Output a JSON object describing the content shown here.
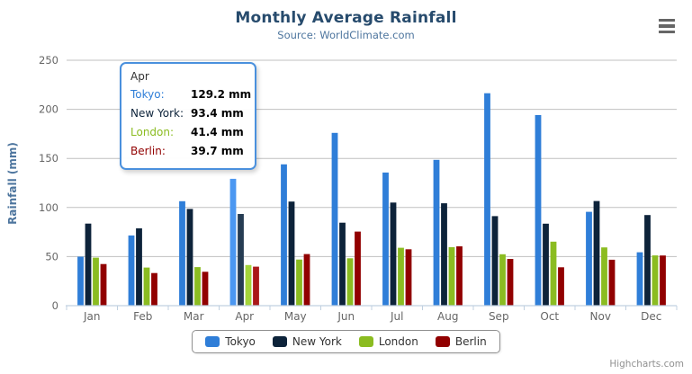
{
  "chart_data": {
    "type": "bar",
    "title": "Monthly Average Rainfall",
    "subtitle": "Source: WorldClimate.com",
    "xlabel": "",
    "ylabel": "Rainfall (mm)",
    "ylim": [
      0,
      250
    ],
    "ytick_interval": 50,
    "grid": true,
    "legend_position": "bottom",
    "categories": [
      "Jan",
      "Feb",
      "Mar",
      "Apr",
      "May",
      "Jun",
      "Jul",
      "Aug",
      "Sep",
      "Oct",
      "Nov",
      "Dec"
    ],
    "series": [
      {
        "name": "Tokyo",
        "color": "#2f7ed8",
        "hover_color": "#4b97f1",
        "values": [
          49.9,
          71.5,
          106.4,
          129.2,
          144.0,
          176.0,
          135.6,
          148.5,
          216.4,
          194.1,
          95.6,
          54.4
        ]
      },
      {
        "name": "New York",
        "color": "#0d233a",
        "hover_color": "#263c53",
        "values": [
          83.6,
          78.8,
          98.5,
          93.4,
          106.0,
          84.5,
          105.0,
          104.3,
          91.2,
          83.5,
          106.6,
          92.3
        ]
      },
      {
        "name": "London",
        "color": "#8bbc21",
        "hover_color": "#a4d53a",
        "values": [
          48.9,
          38.8,
          39.3,
          41.4,
          47.0,
          48.3,
          59.0,
          59.6,
          52.4,
          65.2,
          59.3,
          51.2
        ]
      },
      {
        "name": "Berlin",
        "color": "#910000",
        "hover_color": "#aa1919",
        "values": [
          42.4,
          33.2,
          34.5,
          39.7,
          52.6,
          75.5,
          57.4,
          60.4,
          47.6,
          39.1,
          46.8,
          51.1
        ]
      }
    ],
    "hover_category": "Apr",
    "hover_category_index": 3
  },
  "tooltip": {
    "header": "Apr",
    "rows": [
      {
        "name": "Tokyo:",
        "value": "129.2 mm"
      },
      {
        "name": "New York:",
        "value": "93.4 mm"
      },
      {
        "name": "London:",
        "value": "41.4 mm"
      },
      {
        "name": "Berlin:",
        "value": "39.7 mm"
      }
    ]
  },
  "legend": {
    "items": [
      "Tokyo",
      "New York",
      "London",
      "Berlin"
    ]
  },
  "credits": {
    "label": "Highcharts.com"
  },
  "icons": {
    "export_menu": "hamburger-menu-icon"
  },
  "colors": {
    "title": "#274b6d",
    "subtitle": "#4d759e",
    "axis_title": "#4d759e",
    "axis_labels": "#666666",
    "gridline": "#c0c0c0",
    "axis_line": "#c0d0e0",
    "legend_border": "#909090",
    "tooltip_border": "#4a90dd",
    "background": "#ffffff"
  }
}
